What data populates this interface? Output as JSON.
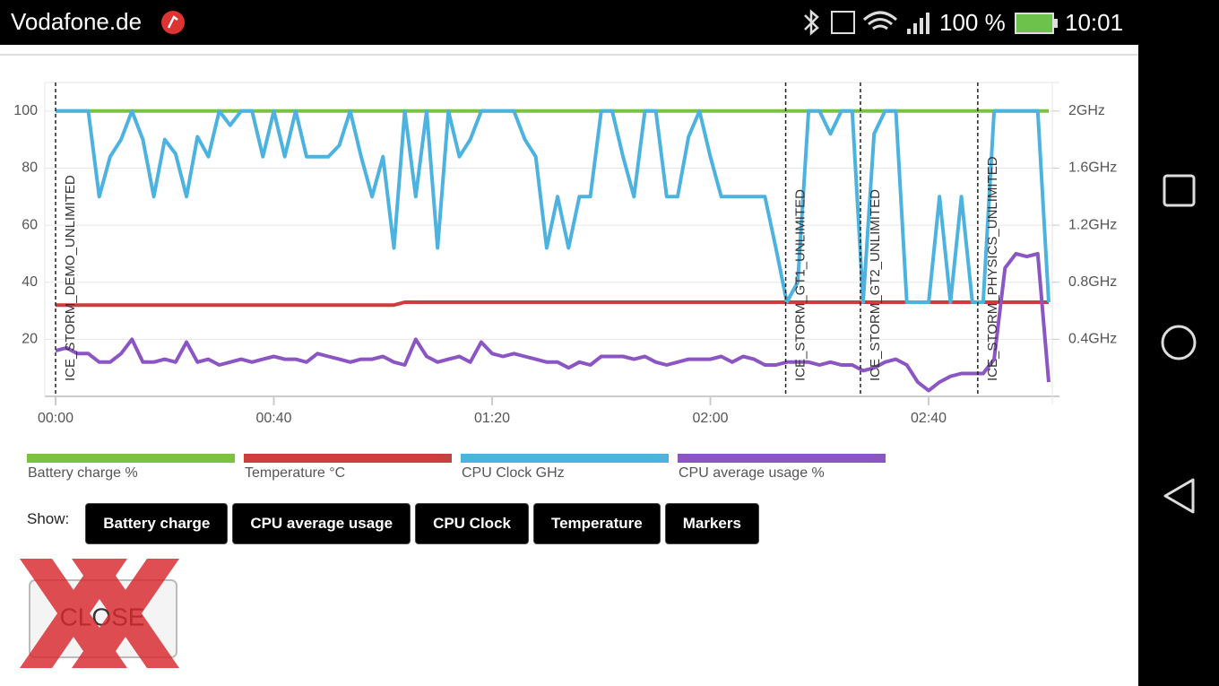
{
  "status_bar": {
    "carrier": "Vodafone.de",
    "battery": "100 %",
    "time": "10:01"
  },
  "chart_data": {
    "type": "line",
    "x": [
      0,
      2,
      4,
      6,
      8,
      10,
      12,
      14,
      16,
      18,
      20,
      22,
      24,
      26,
      28,
      30,
      32,
      34,
      36,
      38,
      40,
      42,
      44,
      46,
      48,
      50,
      52,
      54,
      56,
      58,
      60,
      62,
      64,
      66,
      68,
      70,
      72,
      74,
      76,
      78,
      80,
      82,
      84,
      86,
      88,
      90,
      92,
      94,
      96,
      98,
      100,
      102,
      104,
      106,
      108,
      110,
      112,
      114,
      116,
      118,
      120,
      122,
      124,
      126,
      128,
      130,
      132,
      134,
      136,
      138,
      140,
      142,
      144,
      146,
      148,
      150,
      152,
      154,
      156,
      158,
      160,
      162,
      164,
      166,
      168,
      170,
      172,
      174,
      176,
      178,
      180,
      182
    ],
    "xlim": [
      0,
      182
    ],
    "xticks": [
      {
        "value": 0,
        "label": "00:00"
      },
      {
        "value": 40,
        "label": "00:40"
      },
      {
        "value": 80,
        "label": "01:20"
      },
      {
        "value": 120,
        "label": "02:00"
      },
      {
        "value": 160,
        "label": "02:40"
      }
    ],
    "ylim": [
      0,
      110
    ],
    "yticks": [
      20,
      40,
      60,
      80,
      100
    ],
    "y2lim": [
      0,
      2.2
    ],
    "y2ticks": [
      {
        "value": 0.4,
        "label": "0.4GHz"
      },
      {
        "value": 0.8,
        "label": "0.8GHz"
      },
      {
        "value": 1.2,
        "label": "1.2GHz"
      },
      {
        "value": 1.6,
        "label": "1.6GHz"
      },
      {
        "value": 2,
        "label": "2GHz"
      }
    ],
    "grid": true,
    "legend": "bottom",
    "series": [
      {
        "name": "Battery charge %",
        "color": "#7cc242",
        "values": [
          100,
          100,
          100,
          100,
          100,
          100,
          100,
          100,
          100,
          100,
          100,
          100,
          100,
          100,
          100,
          100,
          100,
          100,
          100,
          100,
          100,
          100,
          100,
          100,
          100,
          100,
          100,
          100,
          100,
          100,
          100,
          100,
          100,
          100,
          100,
          100,
          100,
          100,
          100,
          100,
          100,
          100,
          100,
          100,
          100,
          100,
          100,
          100,
          100,
          100,
          100,
          100,
          100,
          100,
          100,
          100,
          100,
          100,
          100,
          100,
          100,
          100,
          100,
          100,
          100,
          100,
          100,
          100,
          100,
          100,
          100,
          100,
          100,
          100,
          100,
          100,
          100,
          100,
          100,
          100,
          100,
          100,
          100,
          100,
          100,
          100,
          100,
          100,
          100,
          100,
          100,
          100
        ]
      },
      {
        "name": "Temperature °C",
        "color": "#cc3d3d",
        "values": [
          32,
          32,
          32,
          32,
          32,
          32,
          32,
          32,
          32,
          32,
          32,
          32,
          32,
          32,
          32,
          32,
          32,
          32,
          32,
          32,
          32,
          32,
          32,
          32,
          32,
          32,
          32,
          32,
          32,
          32,
          32,
          32,
          33,
          33,
          33,
          33,
          33,
          33,
          33,
          33,
          33,
          33,
          33,
          33,
          33,
          33,
          33,
          33,
          33,
          33,
          33,
          33,
          33,
          33,
          33,
          33,
          33,
          33,
          33,
          33,
          33,
          33,
          33,
          33,
          33,
          33,
          33,
          33,
          33,
          33,
          33,
          33,
          33,
          33,
          33,
          33,
          33,
          33,
          33,
          33,
          33,
          33,
          33,
          33,
          33,
          33,
          33,
          33,
          33,
          33,
          33,
          33
        ]
      },
      {
        "name": "CPU Clock GHz",
        "color": "#4cb3e0",
        "axis": "y2",
        "values": [
          2,
          2,
          2,
          2,
          1.4,
          1.68,
          1.8,
          2,
          1.8,
          1.4,
          1.8,
          1.7,
          1.4,
          1.82,
          1.68,
          2,
          1.9,
          2,
          2,
          1.68,
          2,
          1.68,
          2,
          1.68,
          1.68,
          1.68,
          1.76,
          2,
          1.68,
          1.4,
          1.68,
          1.04,
          2,
          1.4,
          2,
          1.04,
          2,
          1.68,
          1.8,
          2,
          2,
          2,
          2,
          1.8,
          1.68,
          1.04,
          1.4,
          1.04,
          1.4,
          1.4,
          2,
          2,
          1.68,
          1.4,
          2,
          2,
          1.4,
          1.4,
          1.82,
          2,
          1.68,
          1.4,
          1.4,
          1.4,
          1.4,
          1.4,
          1.04,
          0.66,
          0.8,
          2,
          2,
          1.84,
          2,
          2,
          0.66,
          1.84,
          2,
          2,
          0.66,
          0.66,
          0.66,
          1.4,
          0.66,
          1.4,
          0.66,
          0.66,
          2,
          2,
          2,
          2,
          2,
          0.66
        ]
      },
      {
        "name": "CPU average usage %",
        "color": "#8b56c4",
        "values": [
          16,
          17,
          15,
          15,
          12,
          12,
          15,
          20,
          12,
          12,
          13,
          12,
          19,
          12,
          13,
          11,
          12,
          13,
          12,
          13,
          14,
          13,
          13,
          12,
          15,
          14,
          13,
          12,
          13,
          13,
          14,
          12,
          11,
          20,
          14,
          12,
          13,
          14,
          12,
          19,
          15,
          14,
          15,
          14,
          13,
          12,
          12,
          10,
          12,
          11,
          14,
          14,
          14,
          13,
          14,
          12,
          11,
          12,
          13,
          13,
          13,
          14,
          12,
          14,
          13,
          11,
          11,
          12,
          12,
          12,
          11,
          12,
          11,
          11,
          9,
          10,
          12,
          13,
          11,
          5,
          2,
          5,
          7,
          8,
          8,
          8,
          13,
          45,
          50,
          49,
          50,
          5
        ]
      }
    ],
    "markers": [
      {
        "x": 0,
        "label": "ICE_STORM_DEMO_UNLIMITED"
      },
      {
        "x": 133.8,
        "label": "ICE_STORM_GT1_UNLIMITED"
      },
      {
        "x": 147.5,
        "label": "ICE_STORM_GT2_UNLIMITED"
      },
      {
        "x": 169,
        "label": "ICE_STORM_PHYSICS_UNLIMITED"
      }
    ]
  },
  "controls": {
    "label": "Show:",
    "buttons": [
      "Battery charge",
      "CPU average usage",
      "CPU Clock",
      "Temperature",
      "Markers"
    ]
  },
  "close_button": "CLOSE"
}
